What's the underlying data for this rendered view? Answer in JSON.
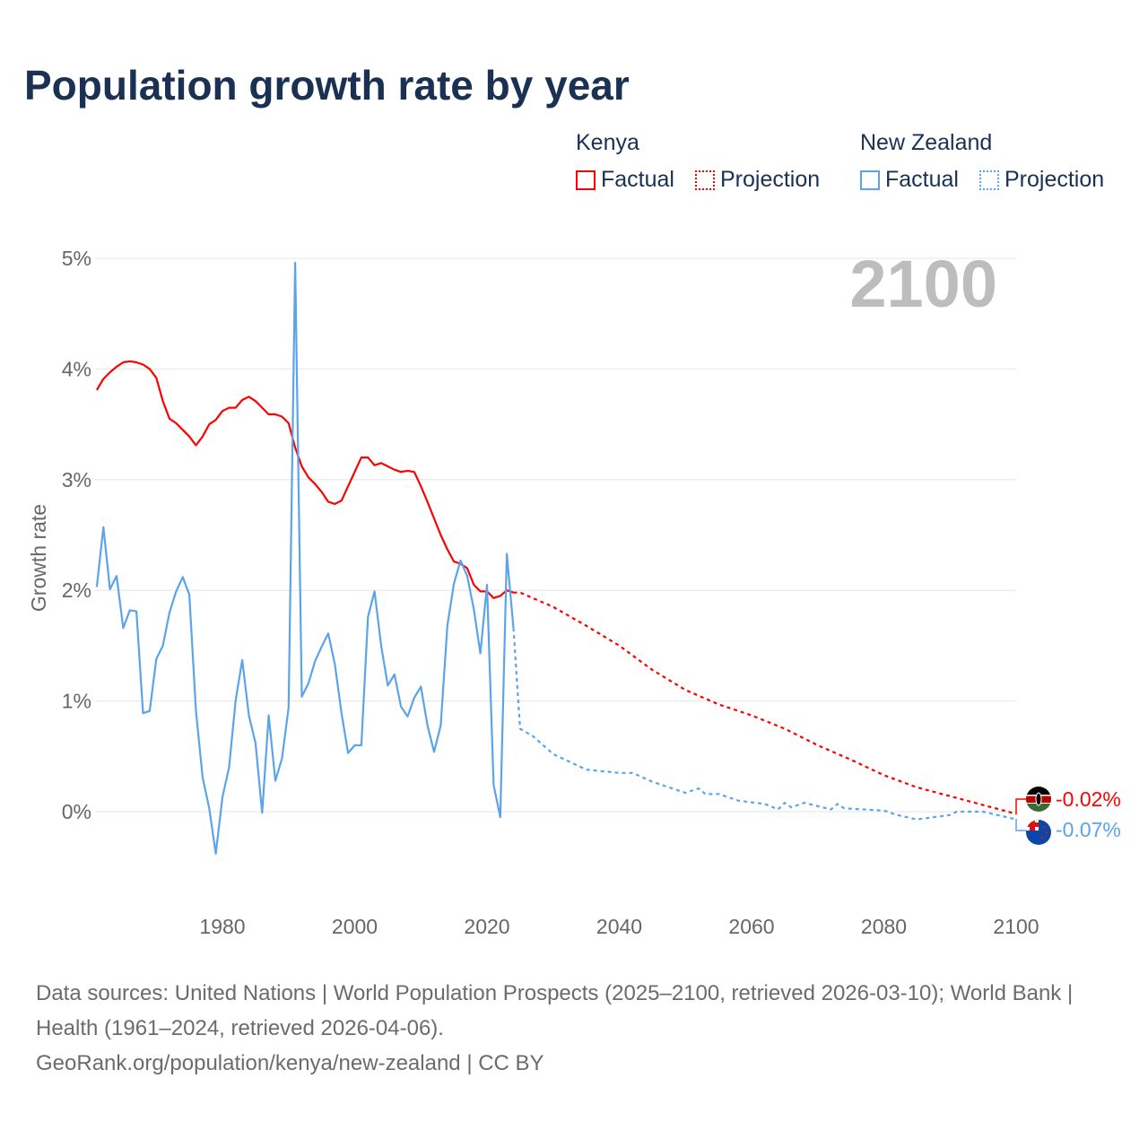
{
  "title": "Population growth rate by year",
  "legend": {
    "groups": [
      {
        "name": "Kenya",
        "factual": "Factual",
        "projection": "Projection",
        "color": "#ff0000"
      },
      {
        "name": "New Zealand",
        "factual": "Factual",
        "projection": "Projection",
        "color": "#5ba3ea"
      }
    ]
  },
  "year_badge": "2100",
  "end_labels": {
    "kenya": "-0.02%",
    "new_zealand": "-0.07%"
  },
  "flags": {
    "kenya": "kenya-flag-icon",
    "new_zealand": "new-zealand-flag-icon"
  },
  "footer": {
    "line1": "Data sources: United Nations | World Population Prospects (2025–2100, retrieved 2026-03-10); World Bank | Health (1961–2024, retrieved 2026-04-06).",
    "line2": "GeoRank.org/population/kenya/new-zealand | CC BY"
  },
  "chart_data": {
    "type": "line",
    "title": "Population growth rate by year",
    "xlabel": "",
    "ylabel": "Growth rate",
    "xlim": [
      1961,
      2100
    ],
    "ylim": [
      -0.6,
      5
    ],
    "x_ticks": [
      1980,
      2000,
      2020,
      2040,
      2060,
      2080,
      2100
    ],
    "x_tick_labels": [
      "1980",
      "2000",
      "2020",
      "2040",
      "2060",
      "2080",
      "2100"
    ],
    "y_ticks": [
      0,
      1,
      2,
      3,
      4,
      5
    ],
    "y_tick_labels": [
      "0%",
      "1%",
      "2%",
      "3%",
      "4%",
      "5%"
    ],
    "grid": true,
    "legend_position": "top-right",
    "series": [
      {
        "name": "Kenya Factual",
        "color": "#ff0000",
        "style": "solid",
        "x": [
          1961,
          1962,
          1963,
          1964,
          1965,
          1966,
          1967,
          1968,
          1969,
          1970,
          1971,
          1972,
          1973,
          1974,
          1975,
          1976,
          1977,
          1978,
          1979,
          1980,
          1981,
          1982,
          1983,
          1984,
          1985,
          1986,
          1987,
          1988,
          1989,
          1990,
          1991,
          1992,
          1993,
          1994,
          1995,
          1996,
          1997,
          1998,
          1999,
          2000,
          2001,
          2002,
          2003,
          2004,
          2005,
          2006,
          2007,
          2008,
          2009,
          2010,
          2011,
          2012,
          2013,
          2014,
          2015,
          2016,
          2017,
          2018,
          2019,
          2020,
          2021,
          2022,
          2023,
          2024
        ],
        "y": [
          3.81,
          3.91,
          3.97,
          4.02,
          4.06,
          4.07,
          4.06,
          4.04,
          4.0,
          3.92,
          3.71,
          3.55,
          3.51,
          3.45,
          3.39,
          3.31,
          3.39,
          3.5,
          3.54,
          3.62,
          3.65,
          3.65,
          3.72,
          3.75,
          3.71,
          3.65,
          3.59,
          3.59,
          3.57,
          3.51,
          3.29,
          3.12,
          3.02,
          2.96,
          2.89,
          2.8,
          2.78,
          2.81,
          2.94,
          3.07,
          3.2,
          3.2,
          3.13,
          3.15,
          3.12,
          3.09,
          3.07,
          3.08,
          3.07,
          2.94,
          2.8,
          2.65,
          2.5,
          2.37,
          2.26,
          2.24,
          2.2,
          2.05,
          1.99,
          1.99,
          1.93,
          1.95,
          2.0,
          1.98
        ]
      },
      {
        "name": "Kenya Projection",
        "color": "#ff0000",
        "style": "dotted",
        "x": [
          2024,
          2025,
          2030,
          2035,
          2040,
          2045,
          2050,
          2055,
          2060,
          2065,
          2070,
          2075,
          2080,
          2085,
          2090,
          2095,
          2100
        ],
        "y": [
          1.98,
          1.98,
          1.85,
          1.68,
          1.5,
          1.28,
          1.1,
          0.97,
          0.87,
          0.75,
          0.6,
          0.47,
          0.33,
          0.22,
          0.14,
          0.06,
          -0.02
        ]
      },
      {
        "name": "New Zealand Factual",
        "color": "#5ba3ea",
        "style": "solid",
        "x": [
          1961,
          1962,
          1963,
          1964,
          1965,
          1966,
          1967,
          1968,
          1969,
          1970,
          1971,
          1972,
          1973,
          1974,
          1975,
          1976,
          1977,
          1978,
          1979,
          1980,
          1981,
          1982,
          1983,
          1984,
          1985,
          1986,
          1987,
          1988,
          1989,
          1990,
          1991,
          1992,
          1993,
          1994,
          1995,
          1996,
          1997,
          1998,
          1999,
          2000,
          2001,
          2002,
          2003,
          2004,
          2005,
          2006,
          2007,
          2008,
          2009,
          2010,
          2011,
          2012,
          2013,
          2014,
          2015,
          2016,
          2017,
          2018,
          2019,
          2020,
          2021,
          2022,
          2023,
          2024
        ],
        "y": [
          2.03,
          2.57,
          2.01,
          2.13,
          1.66,
          1.82,
          1.81,
          0.89,
          0.91,
          1.38,
          1.5,
          1.8,
          1.99,
          2.12,
          1.96,
          0.91,
          0.31,
          0.03,
          -0.38,
          0.13,
          0.4,
          1.01,
          1.37,
          0.87,
          0.62,
          -0.01,
          0.87,
          0.28,
          0.48,
          0.94,
          4.96,
          1.04,
          1.16,
          1.36,
          1.49,
          1.61,
          1.33,
          0.89,
          0.53,
          0.6,
          0.6,
          1.76,
          1.99,
          1.5,
          1.14,
          1.24,
          0.95,
          0.86,
          1.03,
          1.13,
          0.78,
          0.54,
          0.78,
          1.68,
          2.06,
          2.27,
          2.13,
          1.83,
          1.43,
          2.05,
          0.24,
          -0.05,
          2.33,
          1.66
        ]
      },
      {
        "name": "New Zealand Projection",
        "color": "#5ba3ea",
        "style": "dotted",
        "x": [
          2024,
          2025,
          2027,
          2030,
          2035,
          2040,
          2042,
          2045,
          2050,
          2052,
          2053,
          2055,
          2058,
          2062,
          2064,
          2065,
          2066,
          2068,
          2072,
          2073,
          2074,
          2080,
          2082,
          2085,
          2090,
          2091,
          2095,
          2100
        ],
        "y": [
          1.66,
          0.75,
          0.68,
          0.52,
          0.38,
          0.35,
          0.35,
          0.27,
          0.17,
          0.21,
          0.16,
          0.16,
          0.1,
          0.07,
          0.02,
          0.08,
          0.04,
          0.08,
          0.02,
          0.07,
          0.03,
          0.01,
          -0.03,
          -0.07,
          -0.03,
          0.0,
          0.0,
          -0.07
        ]
      }
    ]
  }
}
